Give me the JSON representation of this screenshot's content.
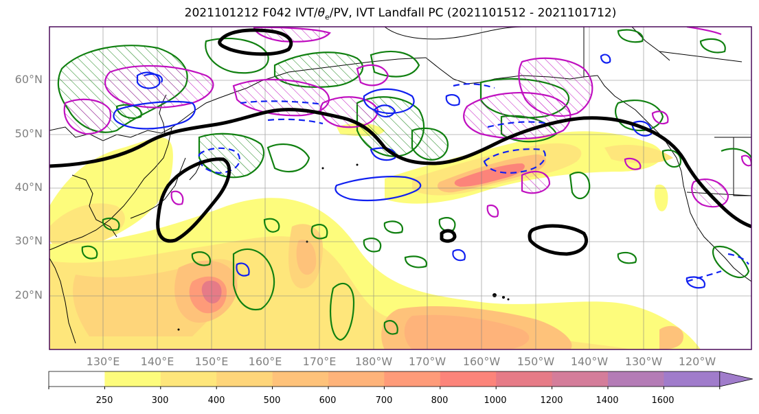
{
  "title_prefix": "2021101212 F042 IVT/",
  "title_symbol": "θ",
  "title_subscript": "e",
  "title_suffix": "/PV, IVT Landfall PC (2021101512 - 2021101712)",
  "lat_labels": [
    "60°N",
    "50°N",
    "40°N",
    "30°N",
    "20°N"
  ],
  "lon_labels": [
    "130°E",
    "140°E",
    "150°E",
    "160°E",
    "170°E",
    "180°W",
    "170°W",
    "160°W",
    "150°W",
    "140°W",
    "130°W",
    "120°W"
  ],
  "colorbar": {
    "labels": [
      "250",
      "300",
      "400",
      "500",
      "600",
      "700",
      "800",
      "1000",
      "1200",
      "1400",
      "1600"
    ],
    "colors": [
      "#ffffff",
      "#fdfc7c",
      "#fee67b",
      "#fed57a",
      "#fec27a",
      "#feb37a",
      "#fe9b79",
      "#fc847a",
      "#e67b87",
      "#d47d9a",
      "#b47cb6",
      "#a07ccb"
    ]
  },
  "legend_colors": {
    "ivt_fill": "#fec27a",
    "theta_e": "#1020f0",
    "pv": "#108010",
    "pc": "#c010c0",
    "contour": "#000000"
  }
}
